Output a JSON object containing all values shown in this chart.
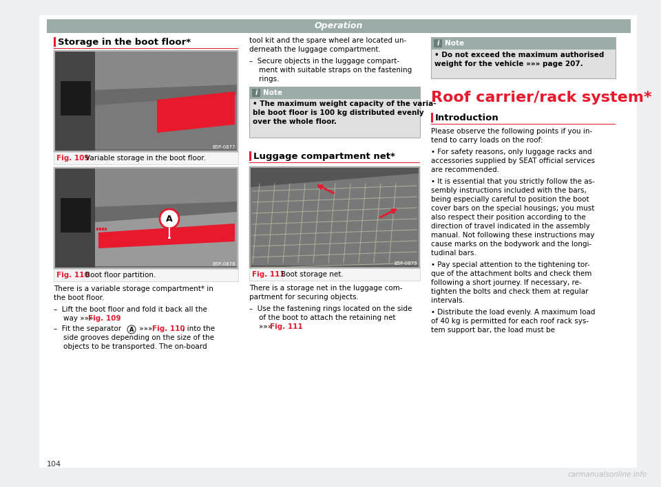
{
  "page_bg": "#eef0f2",
  "content_bg": "#ffffff",
  "header_bg": "#9aaba8",
  "header_text": "Operation",
  "header_text_color": "#ffffff",
  "page_number": "104",
  "watermark": "carmanualsonline.info",
  "red_color": "#e8192c",
  "note_bg": "#e0e0e0",
  "note_header_bg": "#9aaba8",
  "note_icon_bg": "#6a7f7c",
  "section1_title": "Storage in the boot floor*",
  "fig109_label": "Fig. 109",
  "fig109_caption": "Variable storage in the boot floor.",
  "fig110_label": "Fig. 110",
  "fig110_caption": "Boot floor partition.",
  "fig111_label": "Fig. 111",
  "fig111_caption": "Boot storage net.",
  "luggage_title": "Luggage compartment net*",
  "roof_title": "Roof carrier/rack system*",
  "intro_title": "Introduction",
  "note1_line1": "• The maximum weight capacity of the varia-",
  "note1_line2": "ble boot floor is 100 kg distributed evenly",
  "note1_line3": "over the whole floor.",
  "note2_line1": "• Do not exceed the maximum authorised",
  "note2_line2": "weight for the vehicle »»» page 207."
}
